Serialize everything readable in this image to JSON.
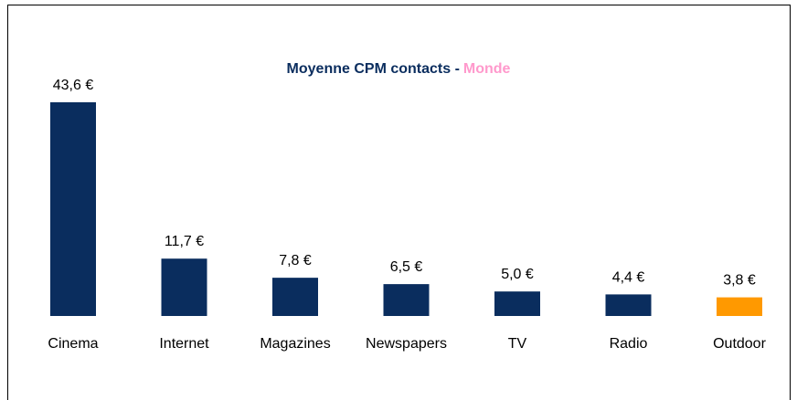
{
  "chart_data": {
    "type": "bar",
    "title": "Moyenne CPM contacts -",
    "subtitle": "Monde",
    "subtitle_color": "#ff99cc",
    "title_color": "#0a2d5e",
    "categories": [
      "Cinema",
      "Internet",
      "Magazines",
      "Newspapers",
      "TV",
      "Radio",
      "Outdoor"
    ],
    "values": [
      43.6,
      11.7,
      7.8,
      6.5,
      5.0,
      4.4,
      3.8
    ],
    "value_labels": [
      "43,6 €",
      "11,7 €",
      "7,8 €",
      "6,5 €",
      "5,0 €",
      "4,4 €",
      "3,8 €"
    ],
    "colors": [
      "#0a2d5e",
      "#0a2d5e",
      "#0a2d5e",
      "#0a2d5e",
      "#0a2d5e",
      "#0a2d5e",
      "#ff9900"
    ]
  }
}
